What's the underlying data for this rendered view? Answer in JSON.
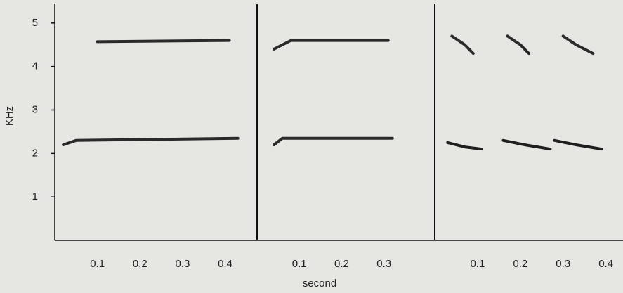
{
  "chart_data": [
    {
      "type": "spectrogram",
      "y_label": "KHz",
      "ylim": [
        0,
        5.45
      ],
      "yticks": [
        1,
        2,
        3,
        4,
        5
      ],
      "xlim": [
        0,
        0.475
      ],
      "xticks": [
        0.1,
        0.2,
        0.3,
        0.4
      ],
      "series": [
        {
          "color": "#2a2a2a",
          "x": [
            0.02,
            0.05,
            0.43
          ],
          "values": [
            2.2,
            2.3,
            2.35
          ]
        },
        {
          "color": "#2a2a2a",
          "x": [
            0.1,
            0.41
          ],
          "values": [
            4.57,
            4.6
          ]
        }
      ]
    },
    {
      "type": "spectrogram",
      "x_label": "second",
      "ylim": [
        0,
        5.45
      ],
      "xlim": [
        0,
        0.42
      ],
      "xticks": [
        0.1,
        0.2,
        0.3
      ],
      "series": [
        {
          "color": "#2a2a2a",
          "x": [
            0.04,
            0.06,
            0.32
          ],
          "values": [
            2.2,
            2.35,
            2.35
          ]
        },
        {
          "color": "#2a2a2a",
          "x": [
            0.04,
            0.08,
            0.31
          ],
          "values": [
            4.4,
            4.6,
            4.6
          ]
        }
      ]
    },
    {
      "type": "spectrogram",
      "ylim": [
        0,
        5.45
      ],
      "xlim": [
        0,
        0.44
      ],
      "xticks": [
        0.1,
        0.2,
        0.3,
        0.4
      ],
      "series": [
        {
          "color": "#1e1e1e",
          "x": [
            0.03,
            0.07,
            0.11
          ],
          "values": [
            2.25,
            2.15,
            2.1
          ]
        },
        {
          "color": "#1e1e1e",
          "x": [
            0.16,
            0.21,
            0.27
          ],
          "values": [
            2.3,
            2.2,
            2.1
          ]
        },
        {
          "color": "#1e1e1e",
          "x": [
            0.28,
            0.33,
            0.39
          ],
          "values": [
            2.3,
            2.2,
            2.1
          ]
        },
        {
          "color": "#2a2a2a",
          "x": [
            0.04,
            0.07,
            0.09
          ],
          "values": [
            4.7,
            4.5,
            4.3
          ]
        },
        {
          "color": "#2a2a2a",
          "x": [
            0.17,
            0.2,
            0.22
          ],
          "values": [
            4.7,
            4.5,
            4.3
          ]
        },
        {
          "color": "#2a2a2a",
          "x": [
            0.3,
            0.33,
            0.37
          ],
          "values": [
            4.7,
            4.5,
            4.3
          ]
        }
      ]
    }
  ]
}
